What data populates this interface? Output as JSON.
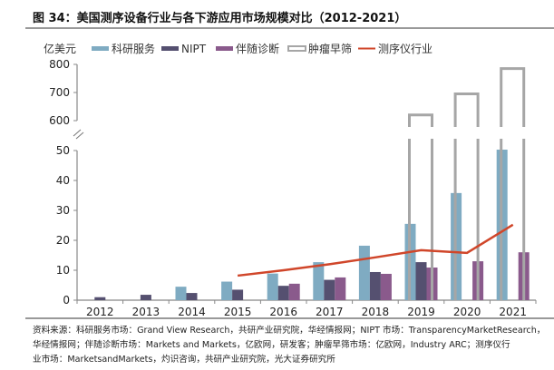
{
  "chart_data": {
    "type": "bar",
    "title": "图 34：美国测序设备行业与各下游应用市场规模对比（2012-2021）",
    "ylabel": "亿美元",
    "categories": [
      "2012",
      "2013",
      "2014",
      "2015",
      "2016",
      "2017",
      "2018",
      "2019",
      "2020",
      "2021"
    ],
    "y_axis": {
      "broken": true,
      "lower_range": [
        0,
        50
      ],
      "lower_ticks": [
        0,
        10,
        20,
        30,
        40,
        50
      ],
      "upper_range": [
        600,
        800
      ],
      "upper_ticks": [
        600,
        700,
        800
      ]
    },
    "grid": false,
    "legend_placement": "top",
    "series": [
      {
        "name": "科研服务",
        "type": "bar",
        "color": "#7fabc2",
        "values": [
          null,
          null,
          4.5,
          6.2,
          8.9,
          12.7,
          18.2,
          25.5,
          35.8,
          50.3
        ]
      },
      {
        "name": "NIPT",
        "type": "bar",
        "color": "#555070",
        "values": [
          1.0,
          1.8,
          2.4,
          3.5,
          4.8,
          6.8,
          9.4,
          12.7,
          null,
          null
        ]
      },
      {
        "name": "伴随诊断",
        "type": "bar",
        "color": "#8a5a8c",
        "values": [
          null,
          null,
          null,
          null,
          5.5,
          7.6,
          8.8,
          10.9,
          13.0,
          16.0
        ]
      },
      {
        "name": "肿瘤早筛",
        "type": "hollow-bar",
        "color": "#a6a6a6",
        "values": [
          null,
          null,
          null,
          null,
          null,
          null,
          null,
          620,
          695,
          785
        ]
      },
      {
        "name": "测序仪行业",
        "type": "line",
        "color": "#d0462a",
        "values": [
          null,
          null,
          null,
          8.2,
          10.0,
          12.0,
          14.3,
          16.7,
          15.8,
          25.2
        ]
      }
    ]
  },
  "source": {
    "lines": [
      "资料来源：科研服务市场：Grand View Research，共研产业研究院，华经情报网；NIPT 市场：TransparencyMarketResearch，",
      "华经情报网；伴随诊断市场：Markets and Markets，亿欧网，研发客；肿瘤早筛市场：亿欧网，Industry ARC；测序仪行",
      "业市场：MarketsandMarkets，灼识咨询，共研产业研究院，光大证券研究所"
    ]
  }
}
